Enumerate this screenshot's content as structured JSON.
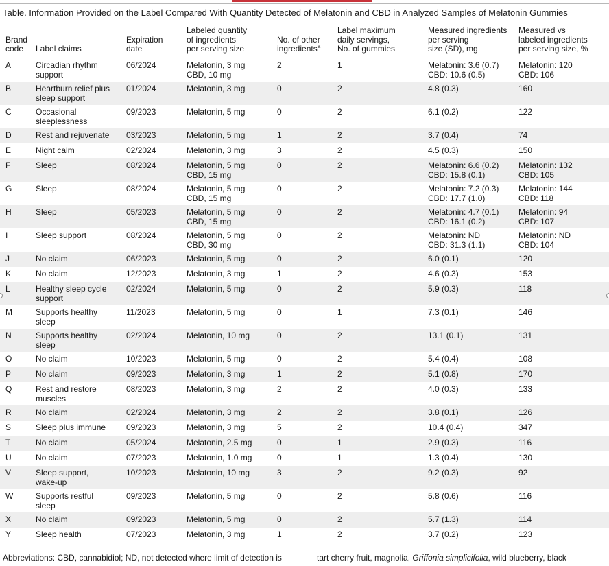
{
  "title": "Table. Information Provided on the Label Compared With Quantity Detected of Melatonin and CBD in Analyzed Samples of Melatonin Gummies",
  "accent_color": "#c8333a",
  "columns": [
    {
      "lines": [
        "Brand",
        "code"
      ]
    },
    {
      "lines": [
        "Label claims"
      ]
    },
    {
      "lines": [
        "Expiration",
        "date"
      ]
    },
    {
      "lines": [
        "Labeled quantity",
        "of ingredients",
        "per serving size"
      ]
    },
    {
      "lines": [
        "No. of other",
        "ingredients"
      ],
      "footnote": "a"
    },
    {
      "lines": [
        "Label maximum",
        "daily servings,",
        "No. of gummies"
      ]
    },
    {
      "lines": [
        "Measured ingredients",
        "per serving",
        "size (SD), mg"
      ]
    },
    {
      "lines": [
        "Measured vs",
        "labeled ingredients",
        "per serving size, %"
      ]
    }
  ],
  "rows": [
    {
      "brand": "A",
      "claims": [
        "Circadian rhythm",
        "support"
      ],
      "exp": "06/2024",
      "labeled": [
        "Melatonin, 3 mg",
        "CBD, 10 mg"
      ],
      "other": "2",
      "max": "1",
      "measured": [
        "Melatonin: 3.6 (0.7)",
        "CBD: 10.6 (0.5)"
      ],
      "vs": [
        "Melatonin: 120",
        "CBD: 106"
      ]
    },
    {
      "brand": "B",
      "claims": [
        "Heartburn relief plus",
        "sleep support"
      ],
      "exp": "01/2024",
      "labeled": [
        "Melatonin, 3 mg"
      ],
      "other": "0",
      "max": "2",
      "measured": [
        "4.8 (0.3)"
      ],
      "vs": [
        "160"
      ]
    },
    {
      "brand": "C",
      "claims": [
        "Occasional",
        "sleeplessness"
      ],
      "exp": "09/2023",
      "labeled": [
        "Melatonin, 5 mg"
      ],
      "other": "0",
      "max": "2",
      "measured": [
        "6.1 (0.2)"
      ],
      "vs": [
        "122"
      ]
    },
    {
      "brand": "D",
      "claims": [
        "Rest and rejuvenate"
      ],
      "exp": "03/2023",
      "labeled": [
        "Melatonin, 5 mg"
      ],
      "other": "1",
      "max": "2",
      "measured": [
        "3.7 (0.4)"
      ],
      "vs": [
        "74"
      ]
    },
    {
      "brand": "E",
      "claims": [
        "Night calm"
      ],
      "exp": "02/2024",
      "labeled": [
        "Melatonin, 3 mg"
      ],
      "other": "3",
      "max": "2",
      "measured": [
        "4.5 (0.3)"
      ],
      "vs": [
        "150"
      ]
    },
    {
      "brand": "F",
      "claims": [
        "Sleep"
      ],
      "exp": "08/2024",
      "labeled": [
        "Melatonin, 5 mg",
        "CBD, 15 mg"
      ],
      "other": "0",
      "max": "2",
      "measured": [
        "Melatonin: 6.6 (0.2)",
        "CBD: 15.8 (0.1)"
      ],
      "vs": [
        "Melatonin: 132",
        "CBD: 105"
      ]
    },
    {
      "brand": "G",
      "claims": [
        "Sleep"
      ],
      "exp": "08/2024",
      "labeled": [
        "Melatonin, 5 mg",
        "CBD, 15 mg"
      ],
      "other": "0",
      "max": "2",
      "measured": [
        "Melatonin: 7.2 (0.3)",
        "CBD: 17.7 (1.0)"
      ],
      "vs": [
        "Melatonin: 144",
        "CBD: 118"
      ]
    },
    {
      "brand": "H",
      "claims": [
        "Sleep"
      ],
      "exp": "05/2023",
      "labeled": [
        "Melatonin, 5 mg",
        "CBD, 15 mg"
      ],
      "other": "0",
      "max": "2",
      "measured": [
        "Melatonin: 4.7 (0.1)",
        "CBD: 16.1 (0.2)"
      ],
      "vs": [
        "Melatonin: 94",
        "CBD: 107"
      ]
    },
    {
      "brand": "I",
      "claims": [
        "Sleep support"
      ],
      "exp": "08/2024",
      "labeled": [
        "Melatonin, 5 mg",
        "CBD, 30 mg"
      ],
      "other": "0",
      "max": "2",
      "measured": [
        "Melatonin: ND",
        "CBD: 31.3 (1.1)"
      ],
      "vs": [
        "Melatonin: ND",
        "CBD: 104"
      ]
    },
    {
      "brand": "J",
      "claims": [
        "No claim"
      ],
      "exp": "06/2023",
      "labeled": [
        "Melatonin, 5 mg"
      ],
      "other": "0",
      "max": "2",
      "measured": [
        "6.0 (0.1)"
      ],
      "vs": [
        "120"
      ]
    },
    {
      "brand": "K",
      "claims": [
        "No claim"
      ],
      "exp": "12/2023",
      "labeled": [
        "Melatonin, 3 mg"
      ],
      "other": "1",
      "max": "2",
      "measured": [
        "4.6 (0.3)"
      ],
      "vs": [
        "153"
      ]
    },
    {
      "brand": "L",
      "claims": [
        "Healthy sleep cycle",
        "support"
      ],
      "exp": "02/2024",
      "labeled": [
        "Melatonin, 5 mg"
      ],
      "other": "0",
      "max": "2",
      "measured": [
        "5.9 (0.3)"
      ],
      "vs": [
        "118"
      ]
    },
    {
      "brand": "M",
      "claims": [
        "Supports healthy",
        "sleep"
      ],
      "exp": "11/2023",
      "labeled": [
        "Melatonin, 5 mg"
      ],
      "other": "0",
      "max": "1",
      "measured": [
        "7.3 (0.1)"
      ],
      "vs": [
        "146"
      ]
    },
    {
      "brand": "N",
      "claims": [
        "Supports healthy",
        "sleep"
      ],
      "exp": "02/2024",
      "labeled": [
        "Melatonin, 10 mg"
      ],
      "other": "0",
      "max": "2",
      "measured": [
        "13.1 (0.1)"
      ],
      "vs": [
        "131"
      ]
    },
    {
      "brand": "O",
      "claims": [
        "No claim"
      ],
      "exp": "10/2023",
      "labeled": [
        "Melatonin, 5 mg"
      ],
      "other": "0",
      "max": "2",
      "measured": [
        "5.4 (0.4)"
      ],
      "vs": [
        "108"
      ]
    },
    {
      "brand": "P",
      "claims": [
        "No claim"
      ],
      "exp": "09/2023",
      "labeled": [
        "Melatonin, 3 mg"
      ],
      "other": "1",
      "max": "2",
      "measured": [
        "5.1 (0.8)"
      ],
      "vs": [
        "170"
      ]
    },
    {
      "brand": "Q",
      "claims": [
        "Rest and restore",
        "muscles"
      ],
      "exp": "08/2023",
      "labeled": [
        "Melatonin, 3 mg"
      ],
      "other": "2",
      "max": "2",
      "measured": [
        "4.0 (0.3)"
      ],
      "vs": [
        "133"
      ]
    },
    {
      "brand": "R",
      "claims": [
        "No claim"
      ],
      "exp": "02/2024",
      "labeled": [
        "Melatonin, 3 mg"
      ],
      "other": "2",
      "max": "2",
      "measured": [
        "3.8 (0.1)"
      ],
      "vs": [
        "126"
      ]
    },
    {
      "brand": "S",
      "claims": [
        "Sleep plus immune"
      ],
      "exp": "09/2023",
      "labeled": [
        "Melatonin, 3 mg"
      ],
      "other": "5",
      "max": "2",
      "measured": [
        "10.4 (0.4)"
      ],
      "vs": [
        "347"
      ]
    },
    {
      "brand": "T",
      "claims": [
        "No claim"
      ],
      "exp": "05/2024",
      "labeled": [
        "Melatonin, 2.5 mg"
      ],
      "other": "0",
      "max": "1",
      "measured": [
        "2.9 (0.3)"
      ],
      "vs": [
        "116"
      ]
    },
    {
      "brand": "U",
      "claims": [
        "No claim"
      ],
      "exp": "07/2023",
      "labeled": [
        "Melatonin, 1.0 mg"
      ],
      "other": "0",
      "max": "1",
      "measured": [
        "1.3 (0.4)"
      ],
      "vs": [
        "130"
      ]
    },
    {
      "brand": "V",
      "claims": [
        "Sleep support,",
        "wake-up"
      ],
      "exp": "10/2023",
      "labeled": [
        "Melatonin, 10 mg"
      ],
      "other": "3",
      "max": "2",
      "measured": [
        "9.2 (0.3)"
      ],
      "vs": [
        "92"
      ]
    },
    {
      "brand": "W",
      "claims": [
        "Supports restful",
        "sleep"
      ],
      "exp": "09/2023",
      "labeled": [
        "Melatonin, 5 mg"
      ],
      "other": "0",
      "max": "2",
      "measured": [
        "5.8 (0.6)"
      ],
      "vs": [
        "116"
      ]
    },
    {
      "brand": "X",
      "claims": [
        "No claim"
      ],
      "exp": "09/2023",
      "labeled": [
        "Melatonin, 5 mg"
      ],
      "other": "0",
      "max": "2",
      "measured": [
        "5.7 (1.3)"
      ],
      "vs": [
        "114"
      ]
    },
    {
      "brand": "Y",
      "claims": [
        "Sleep health"
      ],
      "exp": "07/2023",
      "labeled": [
        "Melatonin, 3 mg"
      ],
      "other": "1",
      "max": "2",
      "measured": [
        "3.7 (0.2)"
      ],
      "vs": [
        "123"
      ]
    }
  ],
  "footer": {
    "abbreviations": "Abbreviations: CBD, cannabidiol; ND, not detected where limit of detection is",
    "footnote_part1": "tart cherry fruit, magnolia, ",
    "footnote_italic": "Griffonia simplicifolia",
    "footnote_part2": ", wild blueberry, black"
  }
}
